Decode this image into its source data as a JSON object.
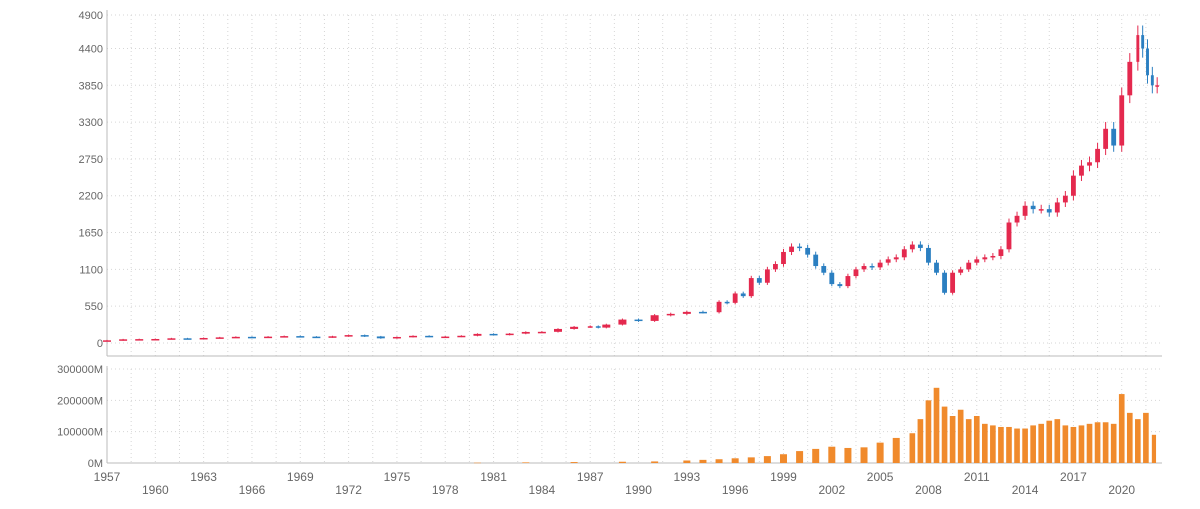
{
  "chart_data": [
    {
      "type": "candlestick",
      "name": "price",
      "title": "",
      "xlabel": "",
      "ylabel": "",
      "ylim": [
        0,
        4900
      ],
      "xlim": [
        1957,
        2022.5
      ],
      "grid": true,
      "up_color": "#e4294e",
      "down_color": "#2b7fc1",
      "y_ticks": [
        "0",
        "550",
        "1100",
        "1650",
        "2200",
        "2750",
        "3300",
        "3850",
        "4400",
        "4900"
      ],
      "y_tick_values": [
        0,
        550,
        1100,
        1650,
        2200,
        2750,
        3300,
        3850,
        4400,
        4900
      ],
      "x_ticks": [
        "1957",
        "1960",
        "1963",
        "1966",
        "1969",
        "1972",
        "1975",
        "1978",
        "1981",
        "1984",
        "1987",
        "1990",
        "1993",
        "1996",
        "1999",
        "2002",
        "2005",
        "2008",
        "2011",
        "2014",
        "2017",
        "2020"
      ],
      "x_tick_values": [
        1957,
        1960,
        1963,
        1966,
        1969,
        1972,
        1975,
        1978,
        1981,
        1984,
        1987,
        1990,
        1993,
        1996,
        1999,
        2002,
        2005,
        2008,
        2011,
        2014,
        2017,
        2020
      ],
      "x": [
        1957.0,
        1958.0,
        1959.0,
        1960.0,
        1961.0,
        1962.0,
        1963.0,
        1964.0,
        1965.0,
        1966.0,
        1967.0,
        1968.0,
        1969.0,
        1970.0,
        1971.0,
        1972.0,
        1973.0,
        1974.0,
        1975.0,
        1976.0,
        1977.0,
        1978.0,
        1979.0,
        1980.0,
        1981.0,
        1982.0,
        1983.0,
        1984.0,
        1985.0,
        1986.0,
        1987.0,
        1987.5,
        1988.0,
        1989.0,
        1990.0,
        1991.0,
        1992.0,
        1993.0,
        1994.0,
        1995.0,
        1995.5,
        1996.0,
        1996.5,
        1997.0,
        1997.5,
        1998.0,
        1998.5,
        1999.0,
        1999.5,
        2000.0,
        2000.5,
        2001.0,
        2001.5,
        2002.0,
        2002.5,
        2003.0,
        2003.5,
        2004.0,
        2004.5,
        2005.0,
        2005.5,
        2006.0,
        2006.5,
        2007.0,
        2007.5,
        2008.0,
        2008.5,
        2009.0,
        2009.5,
        2010.0,
        2010.5,
        2011.0,
        2011.5,
        2012.0,
        2012.5,
        2013.0,
        2013.5,
        2014.0,
        2014.5,
        2015.0,
        2015.5,
        2016.0,
        2016.5,
        2017.0,
        2017.5,
        2018.0,
        2018.5,
        2019.0,
        2019.5,
        2020.0,
        2020.5,
        2021.0,
        2021.3,
        2021.6,
        2021.9,
        2022.2
      ],
      "close": [
        40,
        55,
        58,
        60,
        70,
        65,
        75,
        84,
        92,
        85,
        95,
        103,
        95,
        85,
        100,
        118,
        98,
        70,
        90,
        107,
        95,
        96,
        108,
        136,
        122,
        140,
        165,
        167,
        210,
        242,
        250,
        230,
        275,
        350,
        330,
        415,
        435,
        465,
        460,
        615,
        600,
        740,
        700,
        970,
        900,
        1100,
        1180,
        1360,
        1440,
        1420,
        1320,
        1150,
        1050,
        880,
        850,
        1000,
        1100,
        1150,
        1130,
        1200,
        1250,
        1280,
        1400,
        1470,
        1420,
        1200,
        1050,
        750,
        1050,
        1100,
        1200,
        1250,
        1280,
        1300,
        1400,
        1800,
        1900,
        2050,
        2000,
        2000,
        1950,
        2100,
        2200,
        2500,
        2650,
        2700,
        2900,
        3200,
        2950,
        3700,
        4200,
        4600,
        4400,
        4000,
        3850,
        3850
      ],
      "volume": [
        0,
        0,
        0,
        0,
        0,
        0,
        0,
        0,
        0,
        0,
        0,
        0,
        0,
        0,
        0,
        0,
        0,
        0,
        0,
        0,
        0,
        0,
        0,
        0,
        0,
        0,
        0,
        0,
        0,
        0,
        0,
        0,
        0,
        0,
        0,
        0,
        0,
        0,
        0,
        0,
        0,
        0,
        0,
        0,
        0,
        0,
        0,
        0,
        0,
        0,
        0,
        0,
        0,
        0,
        0,
        0,
        0,
        0,
        0,
        0,
        0,
        0,
        0,
        0,
        0,
        0,
        0,
        0,
        0,
        0,
        0,
        0,
        0,
        0,
        0,
        0,
        0,
        0,
        0,
        0,
        0,
        0,
        0,
        0,
        0,
        0,
        0,
        0,
        0,
        0,
        0,
        0,
        0,
        0,
        0,
        0
      ]
    },
    {
      "type": "bar",
      "name": "volume",
      "title": "",
      "xlabel": "",
      "ylabel": "",
      "ylim": [
        0,
        300000
      ],
      "xlim": [
        1957,
        2022.5
      ],
      "grid": true,
      "bar_color": "#f08a2c",
      "y_ticks": [
        "0M",
        "100000M",
        "200000M",
        "300000M"
      ],
      "y_tick_values": [
        0,
        100000,
        200000,
        300000
      ],
      "x": [
        1980.0,
        1983.0,
        1986.0,
        1989.0,
        1991.0,
        1993.0,
        1994.0,
        1995.0,
        1996.0,
        1997.0,
        1998.0,
        1999.0,
        2000.0,
        2001.0,
        2002.0,
        2003.0,
        2004.0,
        2005.0,
        2006.0,
        2007.0,
        2007.5,
        2008.0,
        2008.5,
        2009.0,
        2009.5,
        2010.0,
        2010.5,
        2011.0,
        2011.5,
        2012.0,
        2012.5,
        2013.0,
        2013.5,
        2014.0,
        2014.5,
        2015.0,
        2015.5,
        2016.0,
        2016.5,
        2017.0,
        2017.5,
        2018.0,
        2018.5,
        2019.0,
        2019.5,
        2020.0,
        2020.5,
        2021.0,
        2021.5,
        2022.0
      ],
      "values": [
        1000,
        2000,
        3000,
        4000,
        5000,
        8000,
        10000,
        12000,
        15000,
        18000,
        22000,
        28000,
        38000,
        45000,
        52000,
        48000,
        50000,
        65000,
        80000,
        95000,
        140000,
        200000,
        240000,
        180000,
        150000,
        170000,
        140000,
        150000,
        125000,
        120000,
        115000,
        115000,
        110000,
        110000,
        120000,
        125000,
        135000,
        140000,
        120000,
        115000,
        120000,
        125000,
        130000,
        130000,
        125000,
        220000,
        160000,
        140000,
        160000,
        90000
      ]
    }
  ]
}
